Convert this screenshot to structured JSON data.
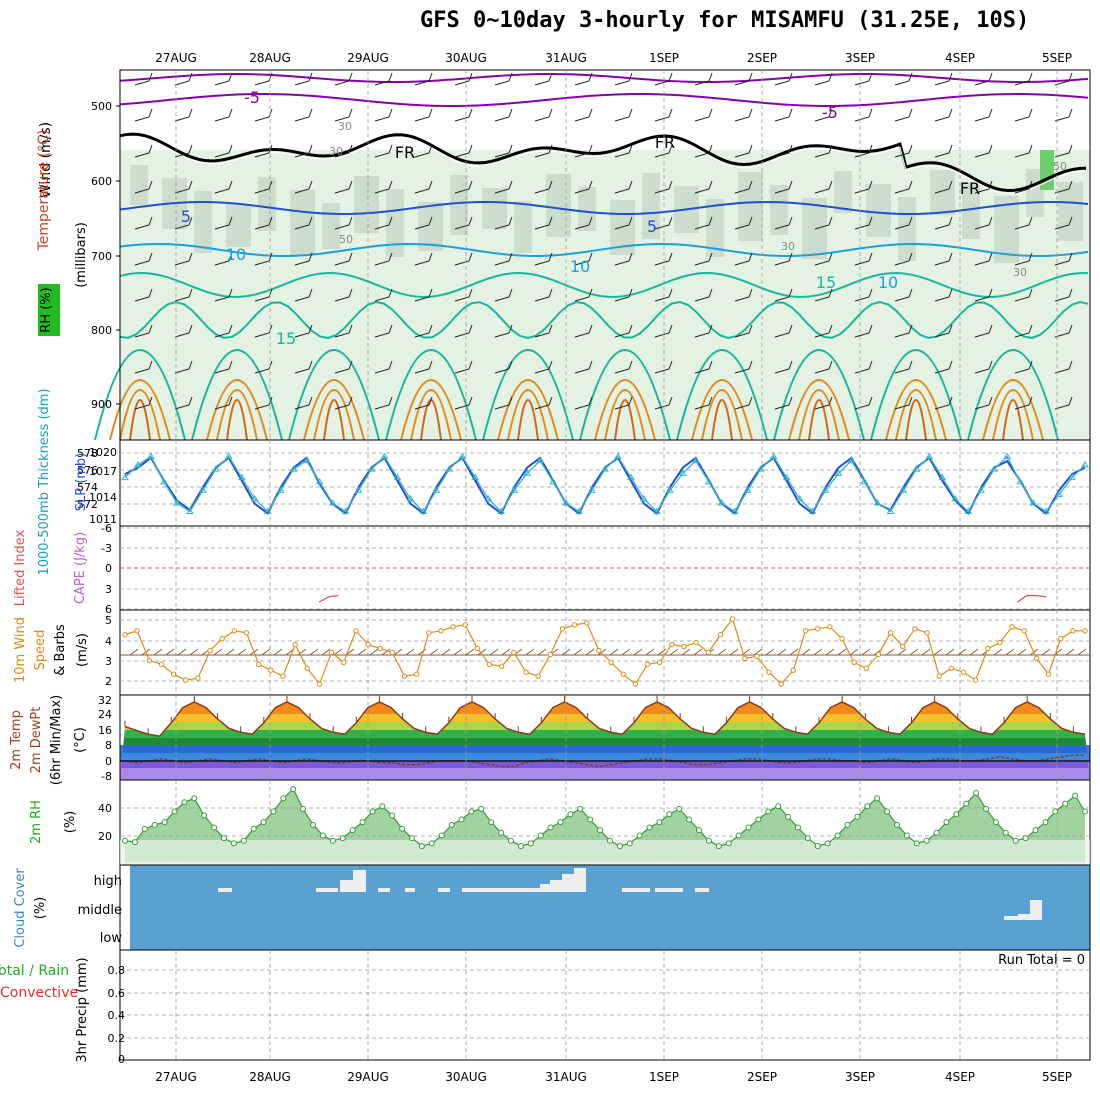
{
  "title": "GFS 0~10day 3-hourly for MISAMFU (31.25E, 10S)",
  "colors": {
    "grid": "#999999",
    "purple": "#8800aa",
    "blue": "#1f4fd8",
    "cyan": "#1f9ad8",
    "teal": "#17b79b",
    "orange": "#e08b1a",
    "rh_green": "#cfe6cf",
    "cloud": "#5aa0d0",
    "green_curve": "#3a9a3a"
  },
  "chart_data": [
    {
      "name": "upper-air-cross-section",
      "type": "line",
      "days": [
        "27AUG",
        "28AUG",
        "29AUG",
        "30AUG",
        "31AUG",
        "1SEP",
        "2SEP",
        "3SEP",
        "4SEP",
        "5SEP"
      ],
      "y_ticks": [
        "500",
        "600",
        "700",
        "800",
        "900"
      ],
      "ylabel_wind": "Wind (m/s)",
      "ylabel_temp": "Temperature (°C)",
      "ylabel_rh": "RH (%)",
      "ylabel_mb": "(millibars)",
      "contour_labels": [
        "-5",
        "-5",
        "FR",
        "FR",
        "FR",
        "5",
        "5",
        "10",
        "10",
        "10",
        "15",
        "15",
        "30",
        "30",
        "30",
        "30",
        "50",
        "50"
      ]
    },
    {
      "name": "thickness-slp",
      "type": "line",
      "left_ticks": [
        "578",
        "576",
        "574",
        "572"
      ],
      "right_ticks": [
        "1020",
        "1017",
        "1014",
        "1011"
      ],
      "ylabel_left": "1000-500mb Thickness (dm)",
      "ylabel_right": "SLP (mb)",
      "series": [
        {
          "values": [
            1017,
            1018,
            1019.5,
            1016,
            1013,
            1011.5,
            1015,
            1018,
            1019.5,
            1016,
            1012.5,
            1011,
            1015,
            1018,
            1019.5,
            1015.5,
            1012.5,
            1011,
            1015,
            1018,
            1019.5,
            1016,
            1012.5,
            1011,
            1015,
            1018,
            1019.5,
            1016,
            1012.5,
            1011,
            1015,
            1018,
            1019.5,
            1016,
            1012.5,
            1011,
            1015,
            1018,
            1019.5,
            1016,
            1012.5,
            1011,
            1015,
            1018,
            1019.5,
            1016,
            1012.5,
            1011,
            1015,
            1018,
            1019.5,
            1016,
            1012.5,
            1011,
            1015,
            1018,
            1019.5,
            1016,
            1012.5,
            1011.5,
            1015,
            1018,
            1019.5,
            1016,
            1013,
            1011,
            1015,
            1018,
            1019,
            1016,
            1012.5,
            1011,
            1014.5,
            1017,
            1018
          ]
        },
        {
          "values": [
            575.5,
            577,
            578,
            575,
            572.5,
            571.5,
            574,
            576.5,
            578,
            575.5,
            573,
            571.5,
            574,
            576.5,
            577.5,
            575,
            572.5,
            571.5,
            574,
            576.5,
            578,
            575.5,
            573,
            571.5,
            574,
            576.5,
            578,
            575.5,
            573,
            571.5,
            574,
            576,
            577.5,
            575,
            572.5,
            571.5,
            574,
            576.5,
            578,
            575.5,
            573,
            571.5,
            574,
            576,
            577.5,
            575,
            572.5,
            571.5,
            574,
            576.5,
            578,
            575.5,
            573,
            571.5,
            574,
            576,
            577.5,
            575,
            572.5,
            571.5,
            574,
            576.5,
            578,
            575.5,
            573,
            571.5,
            574,
            576.5,
            578,
            575,
            572.5,
            571.5,
            573.5,
            575.5,
            577
          ]
        }
      ]
    },
    {
      "name": "cape-lifted-index",
      "type": "line",
      "ticks": [
        "-6",
        "-3",
        "0",
        "3",
        "6"
      ],
      "ylabel_left": "Lifted Index",
      "ylabel_right": "CAPE (J/kg)",
      "series": [
        {
          "values": [
            5,
            6,
            6,
            6,
            6,
            6,
            6,
            6,
            6,
            6,
            6,
            6,
            6,
            6,
            6,
            6,
            6,
            6,
            6,
            6,
            5,
            4.2,
            4,
            6,
            6,
            6,
            6,
            6,
            6,
            6,
            6,
            6,
            6,
            6,
            6,
            6,
            6,
            6,
            6,
            6,
            6,
            6,
            6,
            6,
            6,
            6,
            6,
            6,
            6,
            6,
            6,
            6,
            6,
            6,
            6,
            6,
            6,
            6,
            6,
            6,
            6,
            6,
            6,
            6,
            6,
            6,
            6,
            6,
            6,
            6,
            6,
            6,
            6,
            6,
            6,
            6,
            6,
            6,
            6,
            6,
            6,
            6,
            6,
            6,
            6,
            6,
            6,
            6,
            6,
            6,
            6,
            6,
            5,
            4,
            4,
            4.2,
            6,
            6,
            6,
            6
          ]
        }
      ]
    },
    {
      "name": "wind-speed",
      "type": "line",
      "ticks": [
        "5",
        "4",
        "3",
        "2"
      ],
      "ylabel": "10m Wind Speed & Barbs (m/s)",
      "series": [
        {
          "values": [
            4.3,
            4.5,
            3,
            2.8,
            2.3,
            2,
            2.1,
            3.5,
            4.1,
            4.5,
            4.4,
            2.8,
            2.5,
            2.2,
            3.8,
            2.6,
            1.8,
            3.4,
            2.9,
            4.5,
            3.8,
            3.6,
            3.4,
            2.2,
            2.3,
            4.4,
            4.5,
            4.7,
            4.8,
            3.6,
            2.8,
            2.7,
            3.4,
            2.4,
            2.2,
            3.3,
            4.6,
            4.8,
            4.9,
            3.5,
            2.9,
            2.3,
            1.8,
            2.8,
            2.9,
            3.8,
            3.7,
            3.9,
            3.4,
            4.3,
            5.1,
            3.1,
            3.2,
            2.4,
            1.8,
            2.5,
            4.5,
            4.6,
            4.7,
            4.1,
            2.9,
            2.6,
            3.3,
            4.4,
            3.7,
            4.6,
            4.4,
            2.2,
            2.6,
            2.4,
            2,
            3.6,
            3.9,
            4.7,
            4.5,
            3.1,
            2.3,
            4.1,
            4.5,
            4.5
          ]
        }
      ]
    },
    {
      "name": "temperature-dewpoint",
      "type": "area",
      "ticks": [
        "32",
        "24",
        "16",
        "8",
        "0",
        "-8"
      ],
      "ylabel": "2m Temp 2m DewPt (6hr Min/Max) (°C)",
      "series": [
        {
          "name": "temp",
          "values": [
            18,
            16,
            14,
            13,
            20,
            28,
            31,
            28,
            22,
            17,
            15,
            14,
            20,
            28,
            31,
            28,
            22,
            17,
            15,
            14,
            20,
            28,
            31,
            28,
            22,
            17,
            15,
            14,
            20,
            28,
            31,
            28,
            22,
            17,
            15,
            14,
            20,
            28,
            31,
            28,
            22,
            17,
            15,
            14,
            20,
            28,
            31,
            28,
            22,
            17,
            15,
            14,
            20,
            28,
            31,
            28,
            22,
            17,
            15,
            14,
            20,
            28,
            31,
            28,
            22,
            17,
            15,
            14,
            20,
            28,
            31,
            28,
            22,
            17,
            15,
            14,
            20,
            28,
            31,
            28,
            22,
            17,
            15,
            14
          ]
        },
        {
          "name": "dewpt",
          "values": [
            0,
            -1,
            0,
            1,
            0,
            -1,
            0,
            1,
            0,
            -1,
            0,
            1,
            0,
            -1,
            0,
            1,
            0,
            -1,
            -1,
            0,
            0,
            -1,
            -1,
            -2,
            -2,
            -1,
            0,
            0,
            0,
            -1,
            -2,
            -3,
            -3,
            -1,
            0,
            1,
            0,
            -1,
            -2,
            -3,
            -2,
            -1,
            0,
            1,
            1,
            0,
            -1,
            -2,
            -2,
            -1,
            0,
            1,
            1,
            0,
            -1,
            -1,
            0,
            1,
            1,
            0,
            0,
            -1,
            0,
            1,
            0,
            -1,
            0,
            1,
            1,
            0,
            0,
            1,
            2,
            1,
            0,
            0,
            1,
            2,
            3,
            3
          ]
        }
      ]
    },
    {
      "name": "relative-humidity",
      "type": "area",
      "ticks": [
        "40",
        "20"
      ],
      "ylabel": "2m RH (%)",
      "series": [
        {
          "values": [
            16,
            15,
            25,
            28,
            30,
            38,
            45,
            48,
            35,
            26,
            18,
            14,
            16,
            25,
            30,
            38,
            48,
            55,
            40,
            28,
            20,
            16,
            18,
            24,
            30,
            38,
            42,
            35,
            25,
            18,
            12,
            14,
            20,
            28,
            32,
            38,
            40,
            30,
            22,
            16,
            12,
            14,
            20,
            26,
            30,
            36,
            40,
            32,
            24,
            16,
            12,
            14,
            20,
            26,
            30,
            36,
            40,
            32,
            24,
            16,
            12,
            14,
            20,
            26,
            32,
            38,
            42,
            34,
            26,
            18,
            12,
            14,
            20,
            28,
            34,
            42,
            48,
            38,
            28,
            20,
            14,
            16,
            22,
            30,
            36,
            44,
            52,
            40,
            30,
            22,
            16,
            18,
            24,
            30,
            38,
            44,
            50,
            38
          ]
        }
      ]
    },
    {
      "name": "cloud-cover",
      "type": "bar",
      "ticks": [
        "high",
        "middle",
        "low"
      ],
      "ylabel": "Cloud Cover (%)"
    },
    {
      "name": "precip",
      "type": "bar",
      "ticks": [
        "0.8",
        "0.6",
        "0.4",
        "0.2",
        "0"
      ],
      "ylabel_a": "Total / Rain",
      "ylabel_b": "Convective",
      "ylabel_c": "3hr Precip (mm)",
      "run_total": "Run Total = 0"
    }
  ]
}
